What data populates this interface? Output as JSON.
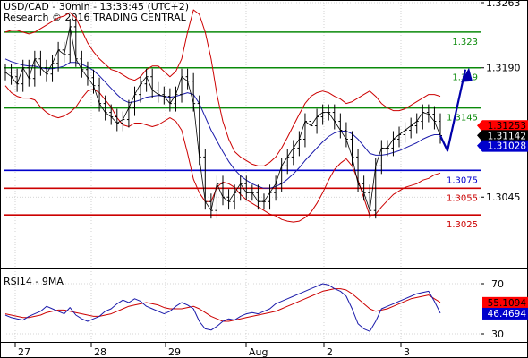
{
  "header": {
    "line1": "USD/CAD - 30min - 13:33:45 (UTC+2)",
    "line2": "Research © 2016 TRADING CENTRAL"
  },
  "chart_data": [
    {
      "type": "line",
      "title": "USD/CAD - 30min",
      "ylim": [
        1.2975,
        1.3263
      ],
      "y_ticks": [
        "1.3263",
        "1.3190",
        "1.3045"
      ],
      "x_ticks": [
        "27",
        "28",
        "29",
        "Aug",
        "2",
        "3"
      ],
      "levels": [
        {
          "label": "1.323",
          "value": 1.323,
          "color": "#0a8a0a"
        },
        {
          "label": "1.319",
          "value": 1.319,
          "color": "#0a8a0a"
        },
        {
          "label": "1.3145",
          "value": 1.3145,
          "color": "#0a8a0a"
        },
        {
          "label": "1.3075",
          "value": 1.3075,
          "color": "#0000cc"
        },
        {
          "label": "1.3055",
          "value": 1.3055,
          "color": "#cc0000"
        },
        {
          "label": "1.3025",
          "value": 1.3025,
          "color": "#cc0000"
        }
      ],
      "value_badges": [
        {
          "label": "1.31253",
          "value": 1.31253,
          "bg": "#ff0000",
          "fg": "#000000"
        },
        {
          "label": "1.31142",
          "value": 1.31142,
          "bg": "#000000",
          "fg": "#ffffff"
        },
        {
          "label": "1.31028",
          "value": 1.31028,
          "bg": "#0000cc",
          "fg": "#ffffff"
        }
      ],
      "projection": [
        1.3114,
        1.3097,
        1.3188
      ],
      "series": [
        {
          "values": [
            1.3185,
            1.318,
            1.3172,
            1.319,
            1.3178,
            1.32,
            1.319,
            1.3183,
            1.3195,
            1.321,
            1.3205,
            1.3236,
            1.32,
            1.3188,
            1.3179,
            1.317,
            1.315,
            1.314,
            1.3135,
            1.3128,
            1.3132,
            1.3145,
            1.316,
            1.3172,
            1.318,
            1.3165,
            1.316,
            1.3158,
            1.315,
            1.316,
            1.318,
            1.3175,
            1.315,
            1.309,
            1.304,
            1.303,
            1.306,
            1.3045,
            1.304,
            1.305,
            1.306,
            1.305,
            1.305,
            1.304,
            1.304,
            1.305,
            1.306,
            1.308,
            1.309,
            1.31,
            1.311,
            1.313,
            1.3125,
            1.3135,
            1.314,
            1.314,
            1.313,
            1.312,
            1.311,
            1.309,
            1.306,
            1.305,
            1.303,
            1.308,
            1.31,
            1.31,
            1.311,
            1.3115,
            1.312,
            1.3125,
            1.313,
            1.314,
            1.3138,
            1.313,
            1.3114
          ]
        },
        {
          "values": [
            1.32,
            1.3197,
            1.3195,
            1.3193,
            1.3192,
            1.3192,
            1.319,
            1.3189,
            1.3189,
            1.319,
            1.3192,
            1.3196,
            1.3196,
            1.3194,
            1.3191,
            1.3187,
            1.3181,
            1.3174,
            1.3167,
            1.316,
            1.3154,
            1.3151,
            1.3152,
            1.3154,
            1.3157,
            1.3158,
            1.3159,
            1.3158,
            1.3157,
            1.3158,
            1.316,
            1.3162,
            1.316,
            1.315,
            1.3135,
            1.312,
            1.3108,
            1.3096,
            1.3085,
            1.3076,
            1.3069,
            1.3064,
            1.306,
            1.3057,
            1.3055,
            1.3055,
            1.3057,
            1.306,
            1.3065,
            1.3071,
            1.3078,
            1.3086,
            1.3093,
            1.31,
            1.3107,
            1.3113,
            1.3117,
            1.3119,
            1.3119,
            1.3116,
            1.311,
            1.3102,
            1.3094,
            1.3092,
            1.3092,
            1.3093,
            1.3095,
            1.3097,
            1.31,
            1.3103,
            1.3106,
            1.311,
            1.3113,
            1.3115,
            1.3115
          ]
        },
        {
          "values": [
            1.323,
            1.3232,
            1.3232,
            1.323,
            1.3228,
            1.323,
            1.3234,
            1.3238,
            1.3242,
            1.3246,
            1.3248,
            1.3252,
            1.3246,
            1.3232,
            1.3218,
            1.3208,
            1.32,
            1.3194,
            1.3188,
            1.3186,
            1.3182,
            1.3178,
            1.3176,
            1.318,
            1.3188,
            1.3192,
            1.3192,
            1.3186,
            1.318,
            1.3186,
            1.32,
            1.323,
            1.3255,
            1.325,
            1.323,
            1.32,
            1.316,
            1.313,
            1.311,
            1.3096,
            1.309,
            1.3086,
            1.3082,
            1.308,
            1.308,
            1.3084,
            1.309,
            1.31,
            1.3112,
            1.3125,
            1.3138,
            1.315,
            1.3158,
            1.3162,
            1.3164,
            1.3162,
            1.3158,
            1.3155,
            1.315,
            1.3152,
            1.3156,
            1.316,
            1.3164,
            1.3158,
            1.315,
            1.3145,
            1.3142,
            1.3142,
            1.3144,
            1.3148,
            1.3152,
            1.3156,
            1.316,
            1.316,
            1.3158
          ]
        },
        {
          "values": [
            1.317,
            1.3162,
            1.3158,
            1.3156,
            1.3156,
            1.3154,
            1.3146,
            1.314,
            1.3136,
            1.3134,
            1.3136,
            1.314,
            1.3146,
            1.3156,
            1.3164,
            1.3166,
            1.3162,
            1.3154,
            1.3146,
            1.3134,
            1.3126,
            1.3124,
            1.3128,
            1.3128,
            1.3126,
            1.3124,
            1.3126,
            1.313,
            1.3134,
            1.313,
            1.312,
            1.3094,
            1.3065,
            1.305,
            1.304,
            1.304,
            1.3056,
            1.3062,
            1.306,
            1.3056,
            1.3048,
            1.3042,
            1.3038,
            1.3034,
            1.303,
            1.3026,
            1.3024,
            1.302,
            1.3018,
            1.3017,
            1.3018,
            1.3022,
            1.3028,
            1.3038,
            1.305,
            1.3064,
            1.3076,
            1.3083,
            1.3088,
            1.308,
            1.3064,
            1.3044,
            1.3024,
            1.3026,
            1.3034,
            1.3041,
            1.3048,
            1.3052,
            1.3056,
            1.3058,
            1.306,
            1.3064,
            1.3066,
            1.307,
            1.3072
          ]
        }
      ]
    },
    {
      "type": "line",
      "title": "RSI14 - 9MA",
      "ylim": [
        25,
        75
      ],
      "y_ticks": [
        "70",
        "30"
      ],
      "value_badges": [
        {
          "label": "55.1094",
          "value": 55.1094,
          "bg": "#ff0000",
          "fg": "#000000"
        },
        {
          "label": "46.4694",
          "value": 46.4694,
          "bg": "#0000cc",
          "fg": "#ffffff"
        }
      ],
      "series": [
        {
          "values": [
            45,
            43,
            42,
            41,
            44,
            46,
            48,
            52,
            50,
            48,
            46,
            51,
            45,
            42,
            40,
            42,
            44,
            48,
            50,
            54,
            57,
            55,
            58,
            56,
            52,
            50,
            48,
            46,
            48,
            52,
            55,
            53,
            50,
            40,
            34,
            33,
            36,
            40,
            42,
            41,
            44,
            46,
            47,
            46,
            48,
            50,
            54,
            56,
            58,
            60,
            62,
            64,
            66,
            68,
            70,
            69,
            66,
            64,
            60,
            50,
            38,
            34,
            32,
            40,
            50,
            52,
            54,
            56,
            58,
            60,
            62,
            63,
            64,
            56,
            46.4694
          ]
        },
        {
          "values": [
            46,
            45,
            44,
            43,
            43,
            44,
            45,
            47,
            48,
            49,
            49,
            48,
            47,
            46,
            45,
            44,
            44,
            45,
            46,
            48,
            50,
            52,
            53,
            54,
            55,
            54,
            53,
            51,
            50,
            50,
            50,
            51,
            52,
            50,
            47,
            44,
            42,
            40,
            40,
            41,
            42,
            43,
            44,
            45,
            46,
            47,
            48,
            50,
            52,
            54,
            56,
            58,
            60,
            62,
            64,
            65,
            66,
            66,
            65,
            62,
            58,
            54,
            50,
            48,
            49,
            50,
            52,
            54,
            56,
            58,
            59,
            60,
            61,
            58,
            55.1094
          ]
        }
      ]
    }
  ]
}
